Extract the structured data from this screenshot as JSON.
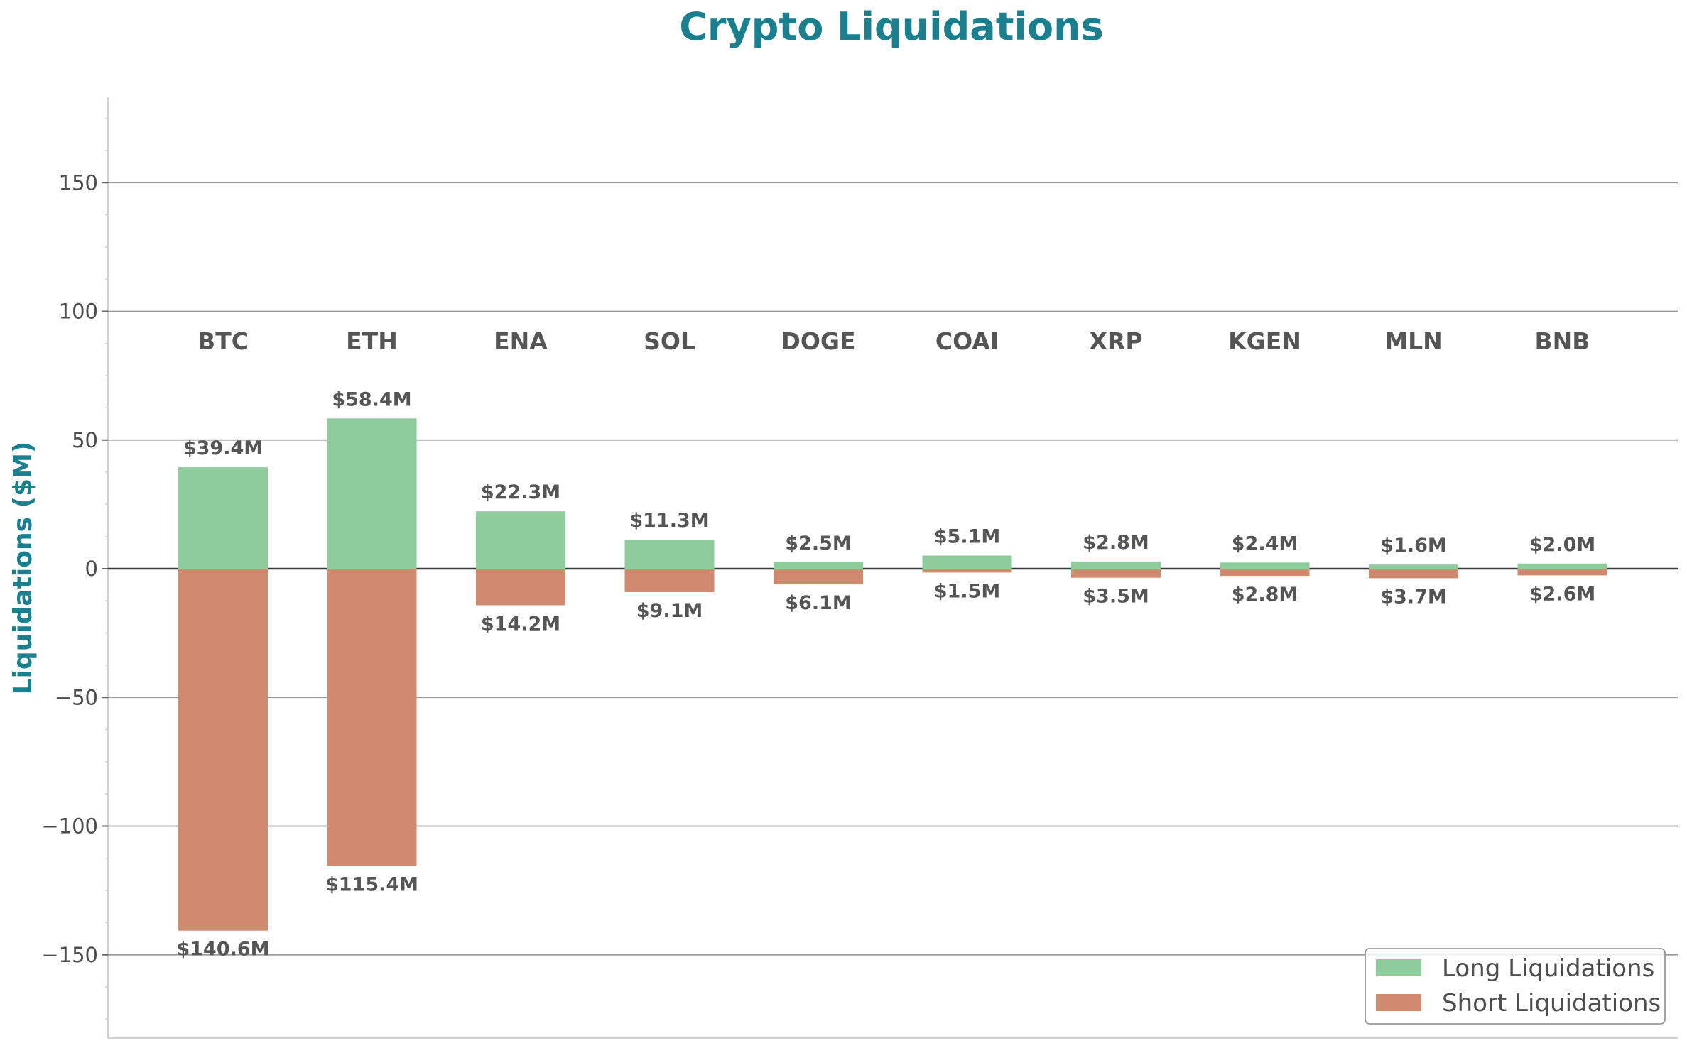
{
  "chart_data": {
    "type": "bar",
    "title": "Crypto Liquidations",
    "ylabel": "Liquidations ($M)",
    "xlabel": "",
    "ylim": [
      -182,
      183
    ],
    "yticks": [
      -150,
      -100,
      -50,
      0,
      50,
      100,
      150
    ],
    "ytick_labels": [
      "−150",
      "−100",
      "−50",
      "0",
      "50",
      "100",
      "150"
    ],
    "grid": true,
    "legend_position": "bottom-right",
    "categories": [
      "BTC",
      "ETH",
      "ENA",
      "SOL",
      "DOGE",
      "COAI",
      "XRP",
      "KGEN",
      "MLN",
      "BNB"
    ],
    "series": [
      {
        "name": "Long Liquidations",
        "color": "#8fcc9c",
        "values": [
          39.4,
          58.4,
          22.3,
          11.3,
          2.5,
          5.1,
          2.8,
          2.4,
          1.6,
          2.0
        ],
        "labels": [
          "$39.4M",
          "$58.4M",
          "$22.3M",
          "$11.3M",
          "$2.5M",
          "$5.1M",
          "$2.8M",
          "$2.4M",
          "$1.6M",
          "$2.0M"
        ]
      },
      {
        "name": "Short Liquidations",
        "color": "#d08a70",
        "values": [
          -140.6,
          -115.4,
          -14.2,
          -9.1,
          -6.1,
          -1.5,
          -3.5,
          -2.8,
          -3.7,
          -2.6
        ],
        "labels": [
          "$140.6M",
          "$115.4M",
          "$14.2M",
          "$9.1M",
          "$6.1M",
          "$1.5M",
          "$3.5M",
          "$2.8M",
          "$3.7M",
          "$2.6M"
        ]
      }
    ],
    "colors": {
      "title": "#1a8090",
      "ylabel": "#1a8090",
      "category_labels": "#555555",
      "value_labels": "#555555"
    }
  }
}
